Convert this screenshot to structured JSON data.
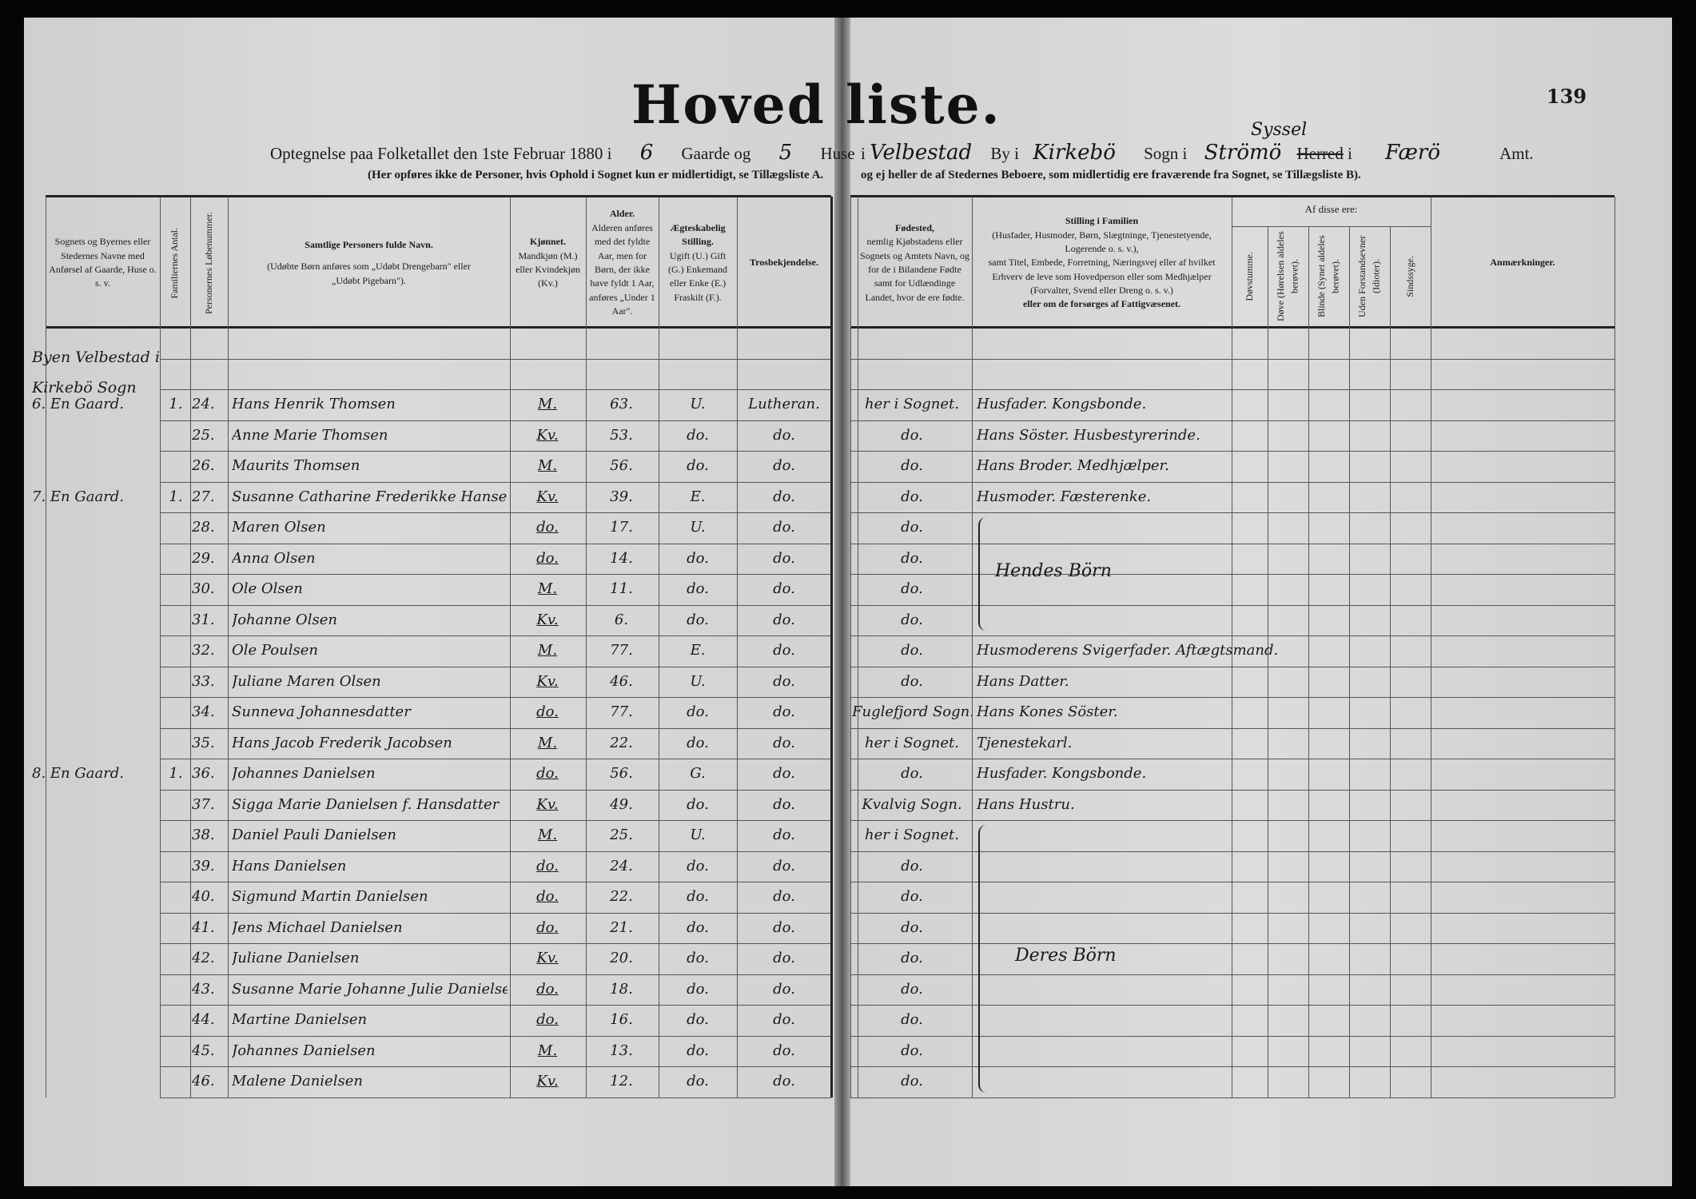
{
  "page_title": "Hoved liste.",
  "page_number": "139",
  "intro": {
    "left_line": "Optegnelse paa Folketallet den 1ste Februar 1880 i",
    "gaarde_value": "6",
    "gaarde_label": "Gaarde og",
    "huse_value": "5",
    "huse_label": "Huse",
    "right_prefix": "i",
    "by_value": "Velbestad",
    "by_label": "By i",
    "sogn_value": "Kirkebö",
    "sogn_label": "Sogn i",
    "herred_value": "Strömö",
    "sysel_correction": "Syssel",
    "herred_label": "Herred",
    "herred_suffix": "i",
    "amt_value": "Færö",
    "amt_label": "Amt.",
    "note_left": "(Her opføres ikke de Personer, hvis Ophold i Sognet kun er midlertidigt, se Tillægsliste A.",
    "note_right": "og ej heller de af Stedernes Beboere, som midlertidig ere fraværende fra Sognet, se Tillægsliste B)."
  },
  "columns": {
    "place": "Sognets og Byernes eller Stedernes Navne med Anførsel af Gaarde, Huse o. s. v.",
    "families": "Familiernes Antal.",
    "serial": "Personernes Løbenummer.",
    "name_title": "Samtlige Personers fulde Navn.",
    "name_note": "(Udøbte Børn anføres som „Udøbt Drengebarn\" eller „Udøbt Pigebarn\").",
    "sex_title": "Kjønnet.",
    "sex_note": "Mandkjøn (M.) eller Kvindekjøn (Kv.)",
    "age_title": "Alder.",
    "age_note": "Alderen anføres med det fyldte Aar, men for Børn, der ikke have fyldt 1 Aar, anføres „Under 1 Aar\".",
    "marital_title": "Ægteskabelig Stilling.",
    "marital_note": "Ugift (U.) Gift (G.) Enkemand eller Enke (E.) Fraskilt (F.).",
    "religion": "Trosbekjendelse.",
    "birthplace_title": "Fødested,",
    "birthplace_note": "nemlig Kjøbstadens eller Sognets og Amtets Navn, og for de i Bilandene Fødte samt for Udlændinge Landet, hvor de ere fødte.",
    "position_title": "Stilling i Familien",
    "position_note1": "(Husfader, Husmoder, Børn, Slægtninge, Tjenestetyende, Logerende o. s. v.),",
    "position_note2": "samt Titel, Embede, Forretning, Næringsvej eller af hvilket Erhverv de leve som Hovedperson eller som Medhjælper (Forvalter, Svend eller Dreng o. s. v.)",
    "position_note3": "eller om de forsørges af Fattigvæsenet.",
    "of_these": "Af disse ere:",
    "deafmute": "Døvstumme.",
    "deaf": "Døve (Hørelsen aldeles berøvet).",
    "blind": "Blinde (Synet aldeles berøvet).",
    "idiots": "Uden Forstandsevner (Idioter).",
    "insane": "Sindssyge.",
    "remarks": "Anmærkninger."
  },
  "place_header": [
    "Byen Velbestad i",
    "Kirkebö Sogn"
  ],
  "rows": [
    {
      "place": "6. En Gaard.",
      "fam": "1.",
      "nr": "24.",
      "name": "Hans Henrik Thomsen",
      "sex": "M.",
      "age": "63.",
      "marital": "U.",
      "religion": "Lutheran.",
      "birthplace": "her i Sognet.",
      "position": "Husfader. Kongsbonde."
    },
    {
      "place": "",
      "fam": "",
      "nr": "25.",
      "name": "Anne Marie Thomsen",
      "sex": "Kv.",
      "age": "53.",
      "marital": "do.",
      "religion": "do.",
      "birthplace": "do.",
      "position": "Hans Söster. Husbestyrerinde."
    },
    {
      "place": "",
      "fam": "",
      "nr": "26.",
      "name": "Maurits Thomsen",
      "sex": "M.",
      "age": "56.",
      "marital": "do.",
      "religion": "do.",
      "birthplace": "do.",
      "position": "Hans Broder. Medhjælper."
    },
    {
      "place": "7. En Gaard.",
      "fam": "1.",
      "nr": "27.",
      "name": "Susanne Catharine Frederikke Hansen",
      "sex": "Kv.",
      "age": "39.",
      "marital": "E.",
      "religion": "do.",
      "birthplace": "do.",
      "position": "Husmoder. Fæsterenke."
    },
    {
      "place": "",
      "fam": "",
      "nr": "28.",
      "name": "Maren Olsen",
      "sex": "do.",
      "age": "17.",
      "marital": "U.",
      "religion": "do.",
      "birthplace": "do.",
      "position": ""
    },
    {
      "place": "",
      "fam": "",
      "nr": "29.",
      "name": "Anna Olsen",
      "sex": "do.",
      "age": "14.",
      "marital": "do.",
      "religion": "do.",
      "birthplace": "do.",
      "position": ""
    },
    {
      "place": "",
      "fam": "",
      "nr": "30.",
      "name": "Ole Olsen",
      "sex": "M.",
      "age": "11.",
      "marital": "do.",
      "religion": "do.",
      "birthplace": "do.",
      "position": ""
    },
    {
      "place": "",
      "fam": "",
      "nr": "31.",
      "name": "Johanne Olsen",
      "sex": "Kv.",
      "age": "6.",
      "marital": "do.",
      "religion": "do.",
      "birthplace": "do.",
      "position": ""
    },
    {
      "place": "",
      "fam": "",
      "nr": "32.",
      "name": "Ole Poulsen",
      "sex": "M.",
      "age": "77.",
      "marital": "E.",
      "religion": "do.",
      "birthplace": "do.",
      "position": "Husmoderens Svigerfader. Aftægtsmand."
    },
    {
      "place": "",
      "fam": "",
      "nr": "33.",
      "name": "Juliane Maren Olsen",
      "sex": "Kv.",
      "age": "46.",
      "marital": "U.",
      "religion": "do.",
      "birthplace": "do.",
      "position": "Hans Datter."
    },
    {
      "place": "",
      "fam": "",
      "nr": "34.",
      "name": "Sunneva Johannesdatter",
      "sex": "do.",
      "age": "77.",
      "marital": "do.",
      "religion": "do.",
      "birthplace": "Fuglefjord Sogn.",
      "position": "Hans Kones Söster."
    },
    {
      "place": "",
      "fam": "",
      "nr": "35.",
      "name": "Hans Jacob Frederik Jacobsen",
      "sex": "M.",
      "age": "22.",
      "marital": "do.",
      "religion": "do.",
      "birthplace": "her i Sognet.",
      "position": "Tjenestekarl."
    },
    {
      "place": "8. En Gaard.",
      "fam": "1.",
      "nr": "36.",
      "name": "Johannes Danielsen",
      "sex": "do.",
      "age": "56.",
      "marital": "G.",
      "religion": "do.",
      "birthplace": "do.",
      "position": "Husfader. Kongsbonde."
    },
    {
      "place": "",
      "fam": "",
      "nr": "37.",
      "name": "Sigga Marie Danielsen f. Hansdatter",
      "sex": "Kv.",
      "age": "49.",
      "marital": "do.",
      "religion": "do.",
      "birthplace": "Kvalvig Sogn.",
      "position": "Hans Hustru."
    },
    {
      "place": "",
      "fam": "",
      "nr": "38.",
      "name": "Daniel Pauli Danielsen",
      "sex": "M.",
      "age": "25.",
      "marital": "U.",
      "religion": "do.",
      "birthplace": "her i Sognet.",
      "position": ""
    },
    {
      "place": "",
      "fam": "",
      "nr": "39.",
      "name": "Hans Danielsen",
      "sex": "do.",
      "age": "24.",
      "marital": "do.",
      "religion": "do.",
      "birthplace": "do.",
      "position": ""
    },
    {
      "place": "",
      "fam": "",
      "nr": "40.",
      "name": "Sigmund Martin Danielsen",
      "sex": "do.",
      "age": "22.",
      "marital": "do.",
      "religion": "do.",
      "birthplace": "do.",
      "position": ""
    },
    {
      "place": "",
      "fam": "",
      "nr": "41.",
      "name": "Jens Michael Danielsen",
      "sex": "do.",
      "age": "21.",
      "marital": "do.",
      "religion": "do.",
      "birthplace": "do.",
      "position": ""
    },
    {
      "place": "",
      "fam": "",
      "nr": "42.",
      "name": "Juliane Danielsen",
      "sex": "Kv.",
      "age": "20.",
      "marital": "do.",
      "religion": "do.",
      "birthplace": "do.",
      "position": ""
    },
    {
      "place": "",
      "fam": "",
      "nr": "43.",
      "name": "Susanne Marie Johanne Julie Danielsen",
      "sex": "do.",
      "age": "18.",
      "marital": "do.",
      "religion": "do.",
      "birthplace": "do.",
      "position": ""
    },
    {
      "place": "",
      "fam": "",
      "nr": "44.",
      "name": "Martine Danielsen",
      "sex": "do.",
      "age": "16.",
      "marital": "do.",
      "religion": "do.",
      "birthplace": "do.",
      "position": ""
    },
    {
      "place": "",
      "fam": "",
      "nr": "45.",
      "name": "Johannes Danielsen",
      "sex": "M.",
      "age": "13.",
      "marital": "do.",
      "religion": "do.",
      "birthplace": "do.",
      "position": ""
    },
    {
      "place": "",
      "fam": "",
      "nr": "46.",
      "name": "Malene Danielsen",
      "sex": "Kv.",
      "age": "12.",
      "marital": "do.",
      "religion": "do.",
      "birthplace": "do.",
      "position": ""
    }
  ],
  "groups": [
    {
      "label": "Hendes Börn",
      "from": 4,
      "to": 7
    },
    {
      "label": "Deres Börn",
      "from": 14,
      "to": 22
    }
  ]
}
